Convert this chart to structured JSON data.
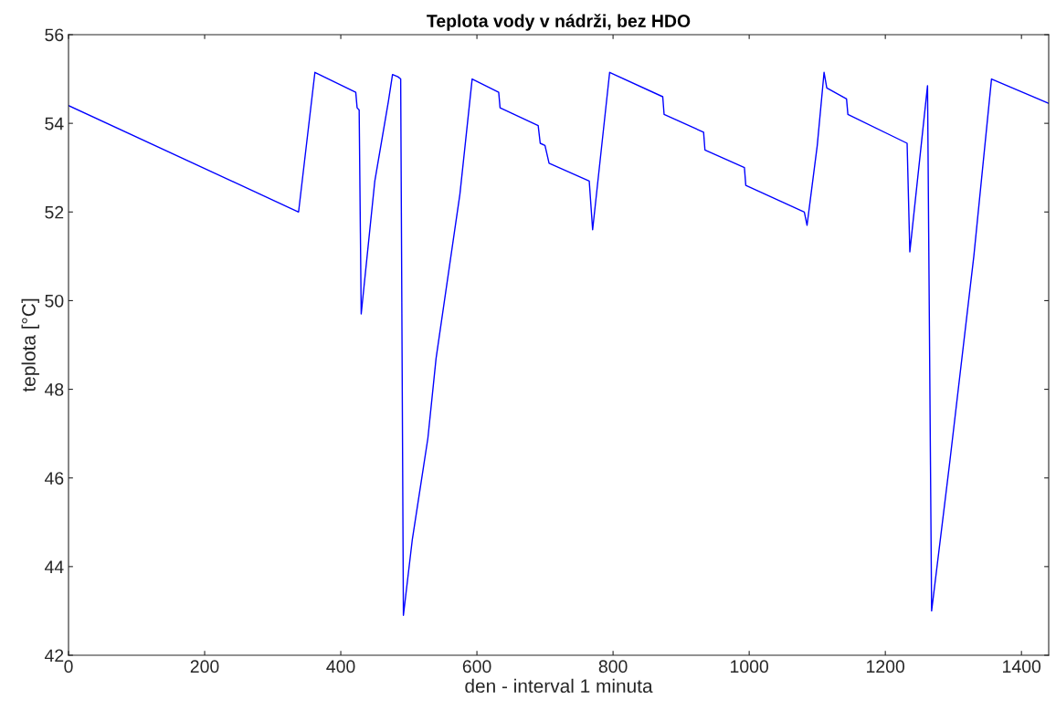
{
  "chart_data": {
    "type": "line",
    "title": "Teplota vody v nádrži, bez HDO",
    "xlabel": "den - interval 1 minuta",
    "ylabel": "teplota [°C]",
    "xlim": [
      0,
      1440
    ],
    "xticks": [
      0,
      200,
      400,
      600,
      800,
      1000,
      1200,
      1400
    ],
    "ylim": [
      42,
      56
    ],
    "yticks": [
      42,
      44,
      46,
      48,
      50,
      52,
      54,
      56
    ],
    "grid": false,
    "legend": false,
    "series": [
      {
        "color": "#0000ff",
        "x": [
          0,
          338,
          362,
          422,
          424,
          427,
          430,
          450,
          470,
          476,
          484,
          488,
          492,
          505,
          528,
          540,
          575,
          593,
          632,
          634,
          690,
          693,
          700,
          706,
          765,
          770,
          795,
          873,
          875,
          933,
          935,
          993,
          995,
          1081,
          1085,
          1100,
          1110,
          1114,
          1143,
          1145,
          1232,
          1236,
          1262,
          1268,
          1295,
          1330,
          1356,
          1440
        ],
        "values": [
          54.4,
          52.0,
          55.15,
          54.7,
          54.35,
          54.3,
          49.7,
          52.7,
          54.5,
          55.1,
          55.05,
          55.0,
          42.9,
          44.6,
          46.9,
          48.7,
          52.4,
          55.0,
          54.7,
          54.35,
          53.95,
          53.55,
          53.5,
          53.1,
          52.7,
          51.6,
          55.15,
          54.6,
          54.2,
          53.8,
          53.4,
          53.0,
          52.6,
          52.0,
          51.7,
          53.5,
          55.15,
          54.8,
          54.55,
          54.2,
          53.55,
          51.1,
          54.85,
          43.0,
          46.4,
          51.0,
          55.0,
          54.45
        ]
      }
    ]
  }
}
